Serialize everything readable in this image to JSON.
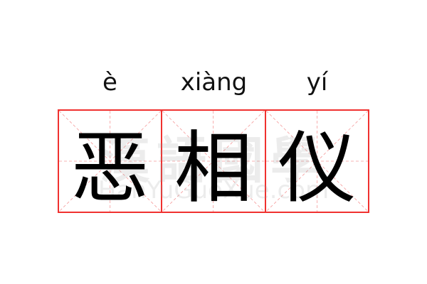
{
  "entries": [
    {
      "pinyin": "è",
      "character": "恶"
    },
    {
      "pinyin": "xiàng",
      "character": "相"
    },
    {
      "pinyin": "yí",
      "character": "仪"
    }
  ],
  "watermark": {
    "chinese": "漢語國學",
    "url": "HanYuGuoXue.com"
  },
  "colors": {
    "grid_border": "#f0312f",
    "grid_guides": "#f59a9a",
    "text": "#000000"
  }
}
